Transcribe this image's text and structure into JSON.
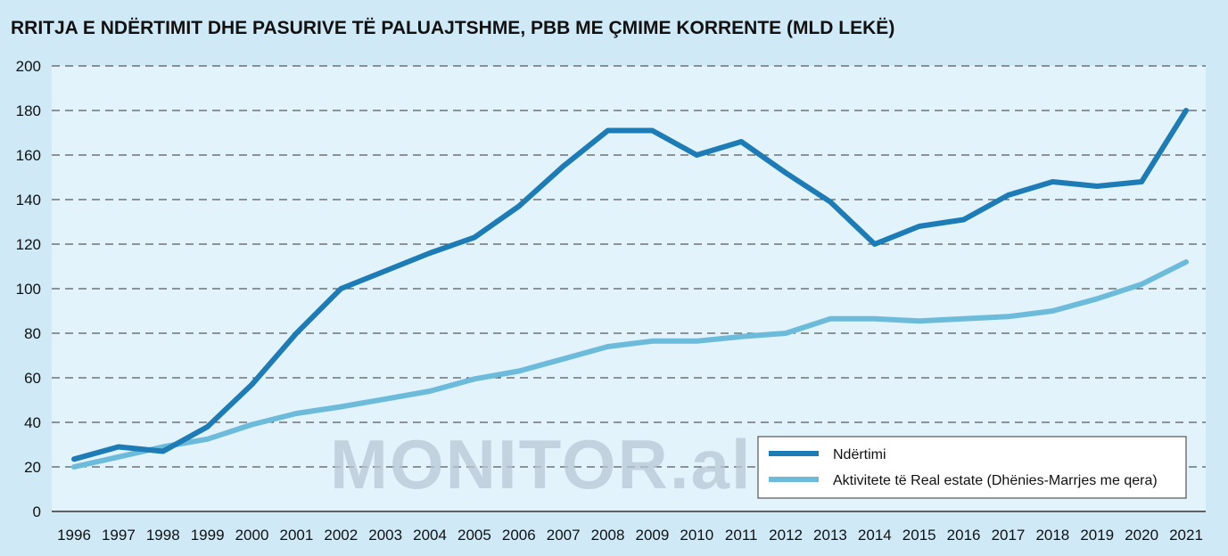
{
  "title": "RRITJA E NDËRTIMIT DHE PASURIVE TË PALUAJTSHME, PBB ME ÇMIME KORRENTE (MLD LEKË)",
  "watermark": "MONITOR.al",
  "colors": {
    "background": "#cfe9f7",
    "plot_background": "#e3f3fc",
    "series_dark": "#1d7bb5",
    "series_light": "#6cbbdb",
    "grid": "#333333"
  },
  "chart_data": {
    "type": "line",
    "title": "RRITJA E NDËRTIMIT DHE PASURIVE TË PALUAJTSHME, PBB ME ÇMIME KORRENTE (MLD LEKË)",
    "xlabel": "",
    "ylabel": "",
    "categories": [
      "1996",
      "1997",
      "1998",
      "1999",
      "2000",
      "2001",
      "2002",
      "2003",
      "2004",
      "2005",
      "2006",
      "2007",
      "2008",
      "2009",
      "2010",
      "2011",
      "2012",
      "2013",
      "2014",
      "2015",
      "2016",
      "2017",
      "2018",
      "2019",
      "2020",
      "2021"
    ],
    "series": [
      {
        "name": "Ndërtimi",
        "color": "#1d7bb5",
        "values": [
          23.5,
          29,
          27,
          38,
          57,
          80,
          100,
          108,
          116,
          123,
          137,
          155,
          171,
          171,
          160,
          166,
          152,
          139,
          120,
          128,
          131,
          142,
          148,
          146,
          148,
          180
        ]
      },
      {
        "name": "Aktivitete të Real estate (Dhënies-Marrjes me qera)",
        "color": "#6cbbdb",
        "values": [
          20,
          24.5,
          29,
          32.5,
          39,
          44,
          47,
          50.5,
          54,
          59.5,
          63,
          68.5,
          74,
          76.5,
          76.5,
          78.5,
          80,
          86.5,
          86.5,
          85.5,
          86.5,
          87.5,
          90,
          95.5,
          102,
          112
        ]
      }
    ],
    "ylim": [
      0,
      200
    ],
    "yticks": [
      0,
      20,
      40,
      60,
      80,
      100,
      120,
      140,
      160,
      180,
      200
    ],
    "grid": "horizontal dashed",
    "legend_position": "bottom-right"
  }
}
